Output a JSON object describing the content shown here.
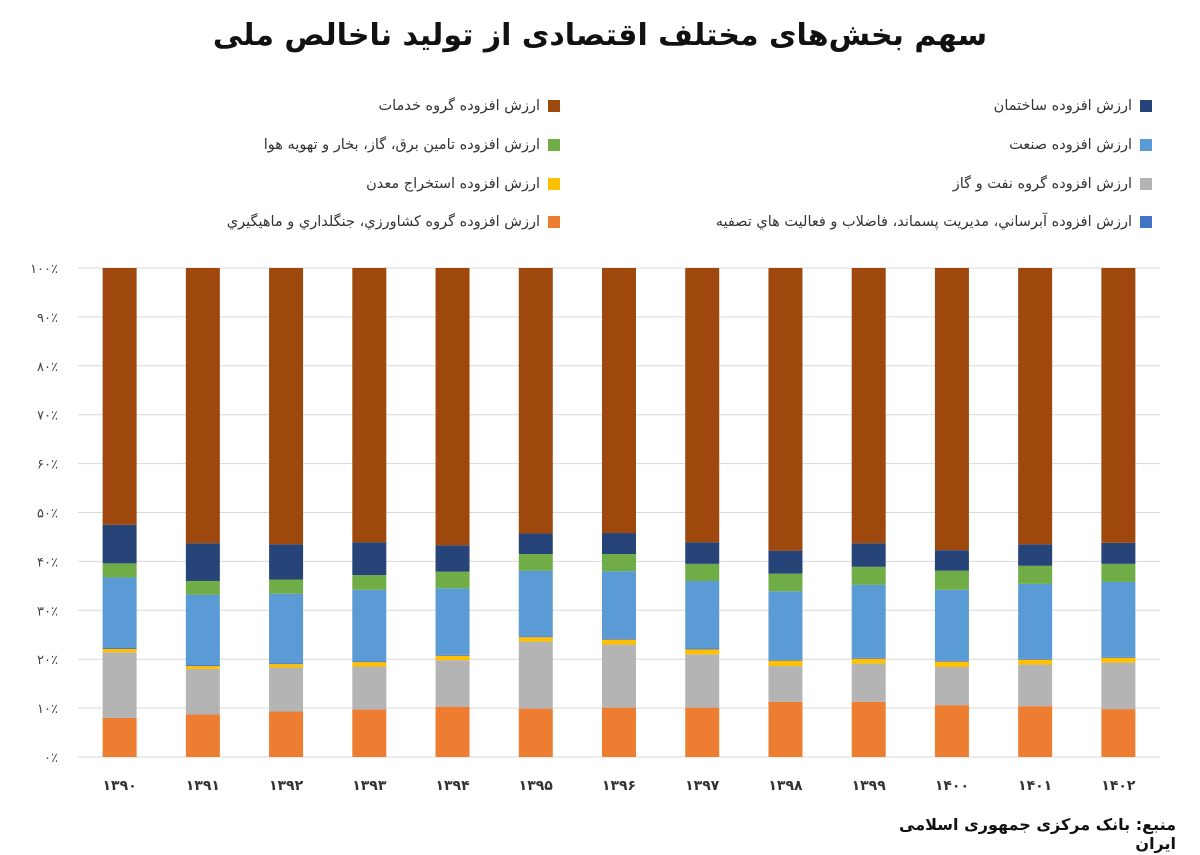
{
  "title": "سهم بخش‌های مختلف اقتصادی از تولید ناخالص ملی",
  "source": "منبع: بانک مرکزی جمهوری اسلامی ایران",
  "chart_data": {
    "type": "bar",
    "stacked": true,
    "title": "سهم بخش‌های مختلف اقتصادی از تولید ناخالص ملی",
    "categories": [
      "۱۳۹۰",
      "۱۳۹۱",
      "۱۳۹۲",
      "۱۳۹۳",
      "۱۳۹۴",
      "۱۳۹۵",
      "۱۳۹۶",
      "۱۳۹۷",
      "۱۳۹۸",
      "۱۳۹۹",
      "۱۴۰۰",
      "۱۴۰۱",
      "۱۴۰۲"
    ],
    "ylim": [
      0,
      100
    ],
    "yticks": [
      "۰٪",
      "۱۰٪",
      "۲۰٪",
      "۳۰٪",
      "۴۰٪",
      "۵۰٪",
      "۶۰٪",
      "۷۰٪",
      "۸۰٪",
      "۹۰٪",
      "۱۰۰٪"
    ],
    "grid": true,
    "legend_position": "top",
    "series": [
      {
        "name": "ارزش افزوده گروه کشاورزي، جنگلداري و ماهيگيري",
        "color": "#ED7D31",
        "values": [
          8.0,
          8.7,
          9.3,
          9.7,
          10.3,
          9.9,
          10.1,
          10.1,
          11.3,
          11.3,
          10.6,
          10.4,
          9.8
        ]
      },
      {
        "name": "ارزش افزوده گروه نفت و گاز",
        "color": "#B4B4B4",
        "values": [
          13.4,
          9.3,
          9.0,
          8.8,
          9.5,
          13.7,
          12.9,
          10.9,
          7.3,
          7.8,
          7.8,
          8.5,
          9.5
        ]
      },
      {
        "name": "ارزش افزوده استخراج معدن",
        "color": "#FFC000",
        "values": [
          0.7,
          0.6,
          0.7,
          0.9,
          0.9,
          0.9,
          1.0,
          1.0,
          1.1,
          1.0,
          1.1,
          1.0,
          1.0
        ]
      },
      {
        "name": "ارزش افزوده آبرساني، مديريت پسماند، فاضلاب و فعاليت هاي تصفيه",
        "color": "#4472C4",
        "values": [
          0.2,
          0.2,
          0.2,
          0.2,
          0.2,
          0.2,
          0.2,
          0.2,
          0.2,
          0.2,
          0.2,
          0.2,
          0.2
        ]
      },
      {
        "name": "ارزش افزوده صنعت",
        "color": "#5B9BD5",
        "values": [
          14.4,
          14.4,
          14.2,
          14.6,
          13.6,
          13.4,
          13.8,
          13.8,
          14.0,
          14.9,
          14.5,
          15.3,
          15.3
        ]
      },
      {
        "name": "ارزش افزوده تامين برق، گاز، بخار و تهويه هوا",
        "color": "#70AD47",
        "values": [
          2.9,
          2.8,
          2.9,
          3.0,
          3.4,
          3.4,
          3.5,
          3.5,
          3.6,
          3.7,
          3.9,
          3.7,
          3.7
        ]
      },
      {
        "name": "ارزش افزوده ساختمان",
        "color": "#264478",
        "values": [
          7.9,
          7.7,
          7.2,
          6.7,
          5.4,
          4.2,
          4.3,
          4.4,
          4.7,
          4.8,
          4.2,
          4.4,
          4.3
        ]
      },
      {
        "name": "ارزش افزوده گروه خدمات",
        "color": "#9E480E",
        "values": [
          52.5,
          56.3,
          56.5,
          56.1,
          56.7,
          54.3,
          54.2,
          56.1,
          57.8,
          56.3,
          57.7,
          56.5,
          56.2
        ]
      }
    ]
  }
}
